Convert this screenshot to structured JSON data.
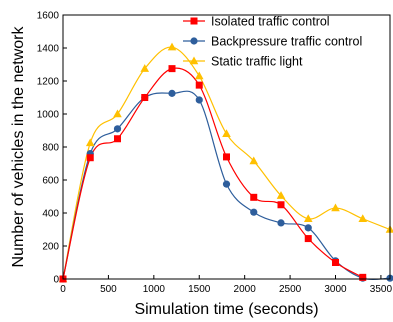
{
  "chart_data": {
    "type": "line",
    "xlabel": "Simulation time (seconds)",
    "ylabel": "Number of vehicles in the network",
    "xlim": [
      0,
      3600
    ],
    "ylim": [
      0,
      1600
    ],
    "xticks": [
      0,
      500,
      1000,
      1500,
      2000,
      2500,
      3000,
      3500
    ],
    "yticks": [
      0,
      200,
      400,
      600,
      800,
      1000,
      1200,
      1400,
      1600
    ],
    "grid": false,
    "legend_position": "top-right",
    "series": [
      {
        "name": "Isolated traffic control",
        "color": "#ff0000",
        "marker": "square",
        "x": [
          0,
          300,
          600,
          900,
          1200,
          1500,
          1800,
          2100,
          2400,
          2700,
          3000,
          3300
        ],
        "y": [
          0,
          735,
          850,
          1100,
          1275,
          1175,
          740,
          495,
          450,
          245,
          100,
          10
        ]
      },
      {
        "name": "Backpressure traffic control",
        "color": "#2e5e9c",
        "marker": "circle",
        "x": [
          0,
          300,
          600,
          900,
          1200,
          1500,
          1800,
          2100,
          2400,
          2700,
          3000,
          3300,
          3600
        ],
        "y": [
          0,
          760,
          910,
          1100,
          1125,
          1085,
          575,
          405,
          340,
          310,
          110,
          5,
          5
        ]
      },
      {
        "name": "Static traffic light",
        "color": "#ffc000",
        "marker": "triangle",
        "x": [
          0,
          300,
          600,
          900,
          1200,
          1500,
          1800,
          2100,
          2400,
          2700,
          3000,
          3300,
          3600
        ],
        "y": [
          0,
          825,
          1000,
          1275,
          1405,
          1230,
          880,
          715,
          505,
          365,
          430,
          365,
          300
        ]
      }
    ]
  }
}
